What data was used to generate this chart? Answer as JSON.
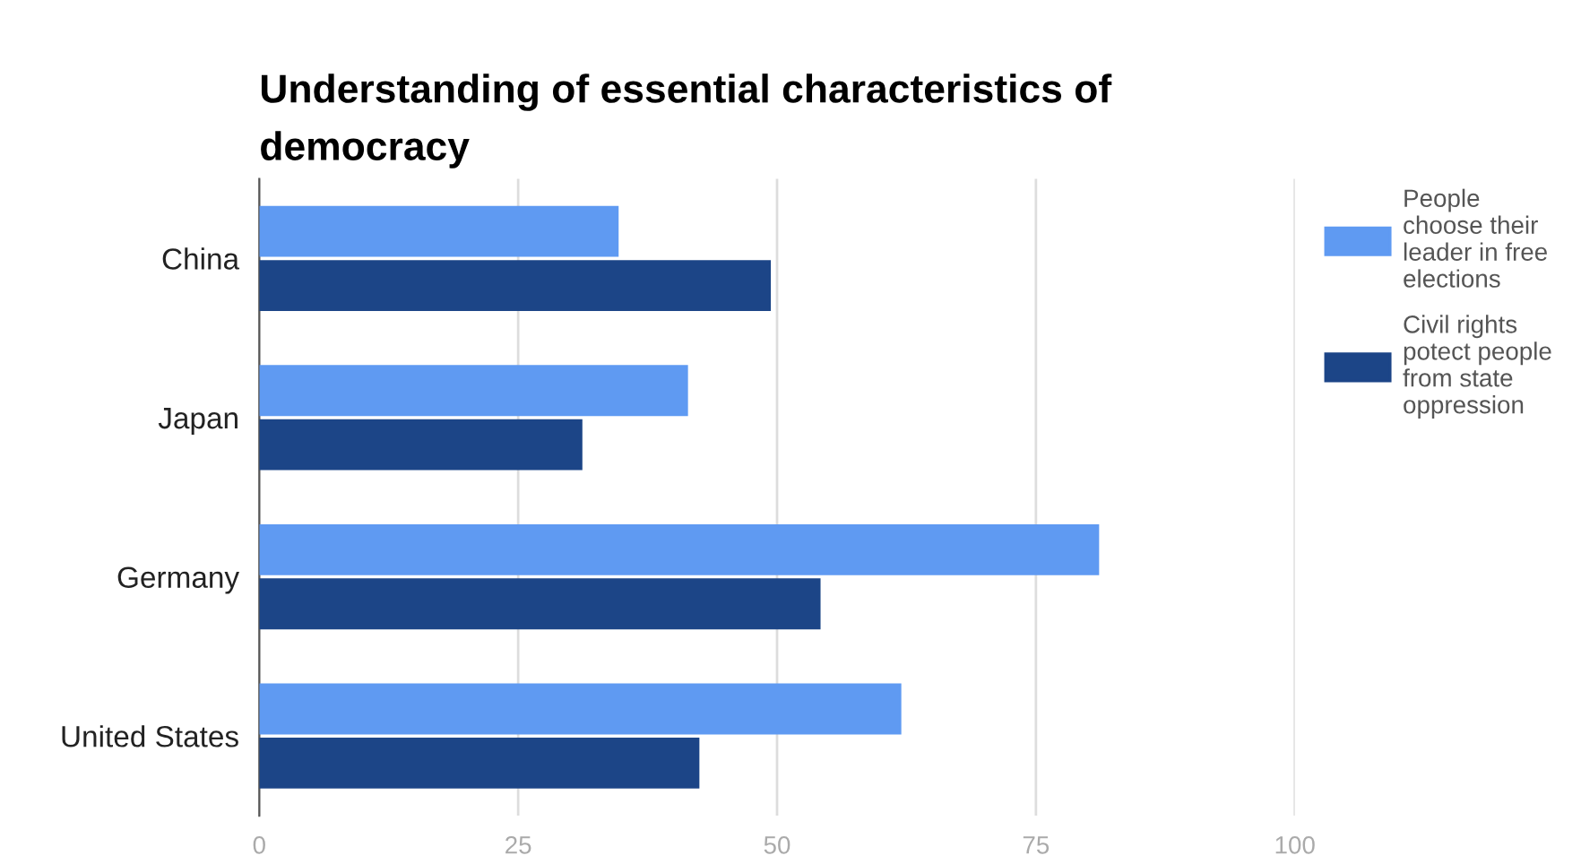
{
  "chart_data": {
    "type": "bar",
    "orientation": "horizontal",
    "title": "Understanding of essential characteristics of\ndemocracy",
    "categories": [
      "China",
      "Japan",
      "Germany",
      "United States"
    ],
    "series": [
      {
        "name": "People\nchoose their\nleader in free\nelections",
        "color": "#5f9af2",
        "values": [
          34.7,
          41.4,
          81.1,
          62.0
        ]
      },
      {
        "name": "Civil rights\npotect people\nfrom state\noppression",
        "color": "#1c4587",
        "values": [
          49.4,
          31.2,
          54.2,
          42.5
        ]
      }
    ],
    "xlim": [
      0,
      100
    ],
    "xticks": [
      0,
      25,
      50,
      75,
      100
    ],
    "grid": "x",
    "legend": "top right"
  }
}
